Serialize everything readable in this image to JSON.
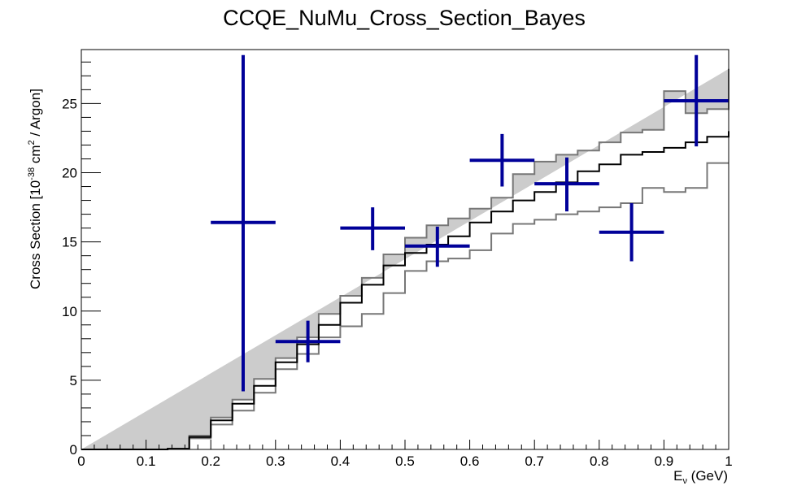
{
  "chart_data": {
    "type": "line",
    "title": "CCQE_NuMu_Cross_Section_Bayes",
    "xlabel": {
      "main": "E",
      "sub": "ν",
      "rest": " (GeV)"
    },
    "ylabel": {
      "pre": "Cross Section [10",
      "sup1": "-38",
      "mid": " cm",
      "sup2": "2",
      "post": " / Argon]"
    },
    "xlim": [
      0,
      1
    ],
    "ylim": [
      0,
      28.9
    ],
    "x_ticks": [
      0,
      0.1,
      0.2,
      0.3,
      0.4,
      0.5,
      0.6,
      0.7,
      0.8,
      0.9,
      1
    ],
    "x_tick_labels": [
      "0",
      "0.1",
      "0.2",
      "0.3",
      "0.4",
      "0.5",
      "0.6",
      "0.7",
      "0.8",
      "0.9",
      "1"
    ],
    "y_ticks": [
      0,
      5,
      10,
      15,
      20,
      25
    ],
    "y_tick_labels": [
      "0",
      "5",
      "10",
      "15",
      "20",
      "25"
    ],
    "grid": false,
    "colors": {
      "band_fill": "#cccccc",
      "band_edge": "#777777",
      "central": "#000000",
      "data": "#000099"
    },
    "mc_bin_edges": [
      0,
      0.0333,
      0.0667,
      0.1,
      0.1333,
      0.1667,
      0.2,
      0.2333,
      0.2667,
      0.3,
      0.3333,
      0.3667,
      0.4,
      0.4333,
      0.4667,
      0.5,
      0.5333,
      0.5667,
      0.6,
      0.6333,
      0.6667,
      0.7,
      0.7333,
      0.7667,
      0.8,
      0.8333,
      0.8667,
      0.9,
      0.9333,
      0.9667,
      1.0
    ],
    "series": [
      {
        "role": "band_upper",
        "values": [
          0,
          0,
          0,
          0,
          0.05,
          1.0,
          2.3,
          3.6,
          5.1,
          6.6,
          8.1,
          9.8,
          11.1,
          12.4,
          14.1,
          15.3,
          16.2,
          16.7,
          17.4,
          18.2,
          19.9,
          20.8,
          21.3,
          21.6,
          22.2,
          22.9,
          23.1,
          25.9,
          24.3,
          24.6,
          27.5
        ]
      },
      {
        "role": "central",
        "values": [
          0,
          0,
          0,
          0,
          0.05,
          0.9,
          2.1,
          3.3,
          4.6,
          6.3,
          7.6,
          9.0,
          10.6,
          11.9,
          13.3,
          14.2,
          14.8,
          15.4,
          16.4,
          17.2,
          18.0,
          18.6,
          19.3,
          20.1,
          20.6,
          21.3,
          21.5,
          21.8,
          22.2,
          22.6,
          23.0
        ]
      },
      {
        "role": "band_lower",
        "values": [
          0,
          0,
          0,
          0,
          0.05,
          0.8,
          1.8,
          2.8,
          4.1,
          5.8,
          6.9,
          8.1,
          8.9,
          9.8,
          11.3,
          12.9,
          13.6,
          13.8,
          14.4,
          15.6,
          16.3,
          16.6,
          17.0,
          17.2,
          17.5,
          17.8,
          18.9,
          18.6,
          18.9,
          20.7,
          20.7
        ]
      }
    ],
    "data_points": [
      {
        "x": 0.25,
        "x_low": 0.2,
        "x_high": 0.3,
        "y": 16.4,
        "y_low": 4.2,
        "y_high": 28.5
      },
      {
        "x": 0.35,
        "x_low": 0.3,
        "x_high": 0.4,
        "y": 7.8,
        "y_low": 6.3,
        "y_high": 9.3
      },
      {
        "x": 0.45,
        "x_low": 0.4,
        "x_high": 0.5,
        "y": 16.0,
        "y_low": 14.4,
        "y_high": 17.5
      },
      {
        "x": 0.55,
        "x_low": 0.5,
        "x_high": 0.6,
        "y": 14.7,
        "y_low": 13.2,
        "y_high": 16.1
      },
      {
        "x": 0.65,
        "x_low": 0.6,
        "x_high": 0.7,
        "y": 20.9,
        "y_low": 19.0,
        "y_high": 22.8
      },
      {
        "x": 0.75,
        "x_low": 0.7,
        "x_high": 0.8,
        "y": 19.2,
        "y_low": 17.2,
        "y_high": 21.1
      },
      {
        "x": 0.85,
        "x_low": 0.8,
        "x_high": 0.9,
        "y": 15.7,
        "y_low": 13.6,
        "y_high": 17.8
      },
      {
        "x": 0.95,
        "x_low": 0.9,
        "x_high": 1.0,
        "y": 25.2,
        "y_low": 21.9,
        "y_high": 28.5
      }
    ]
  }
}
